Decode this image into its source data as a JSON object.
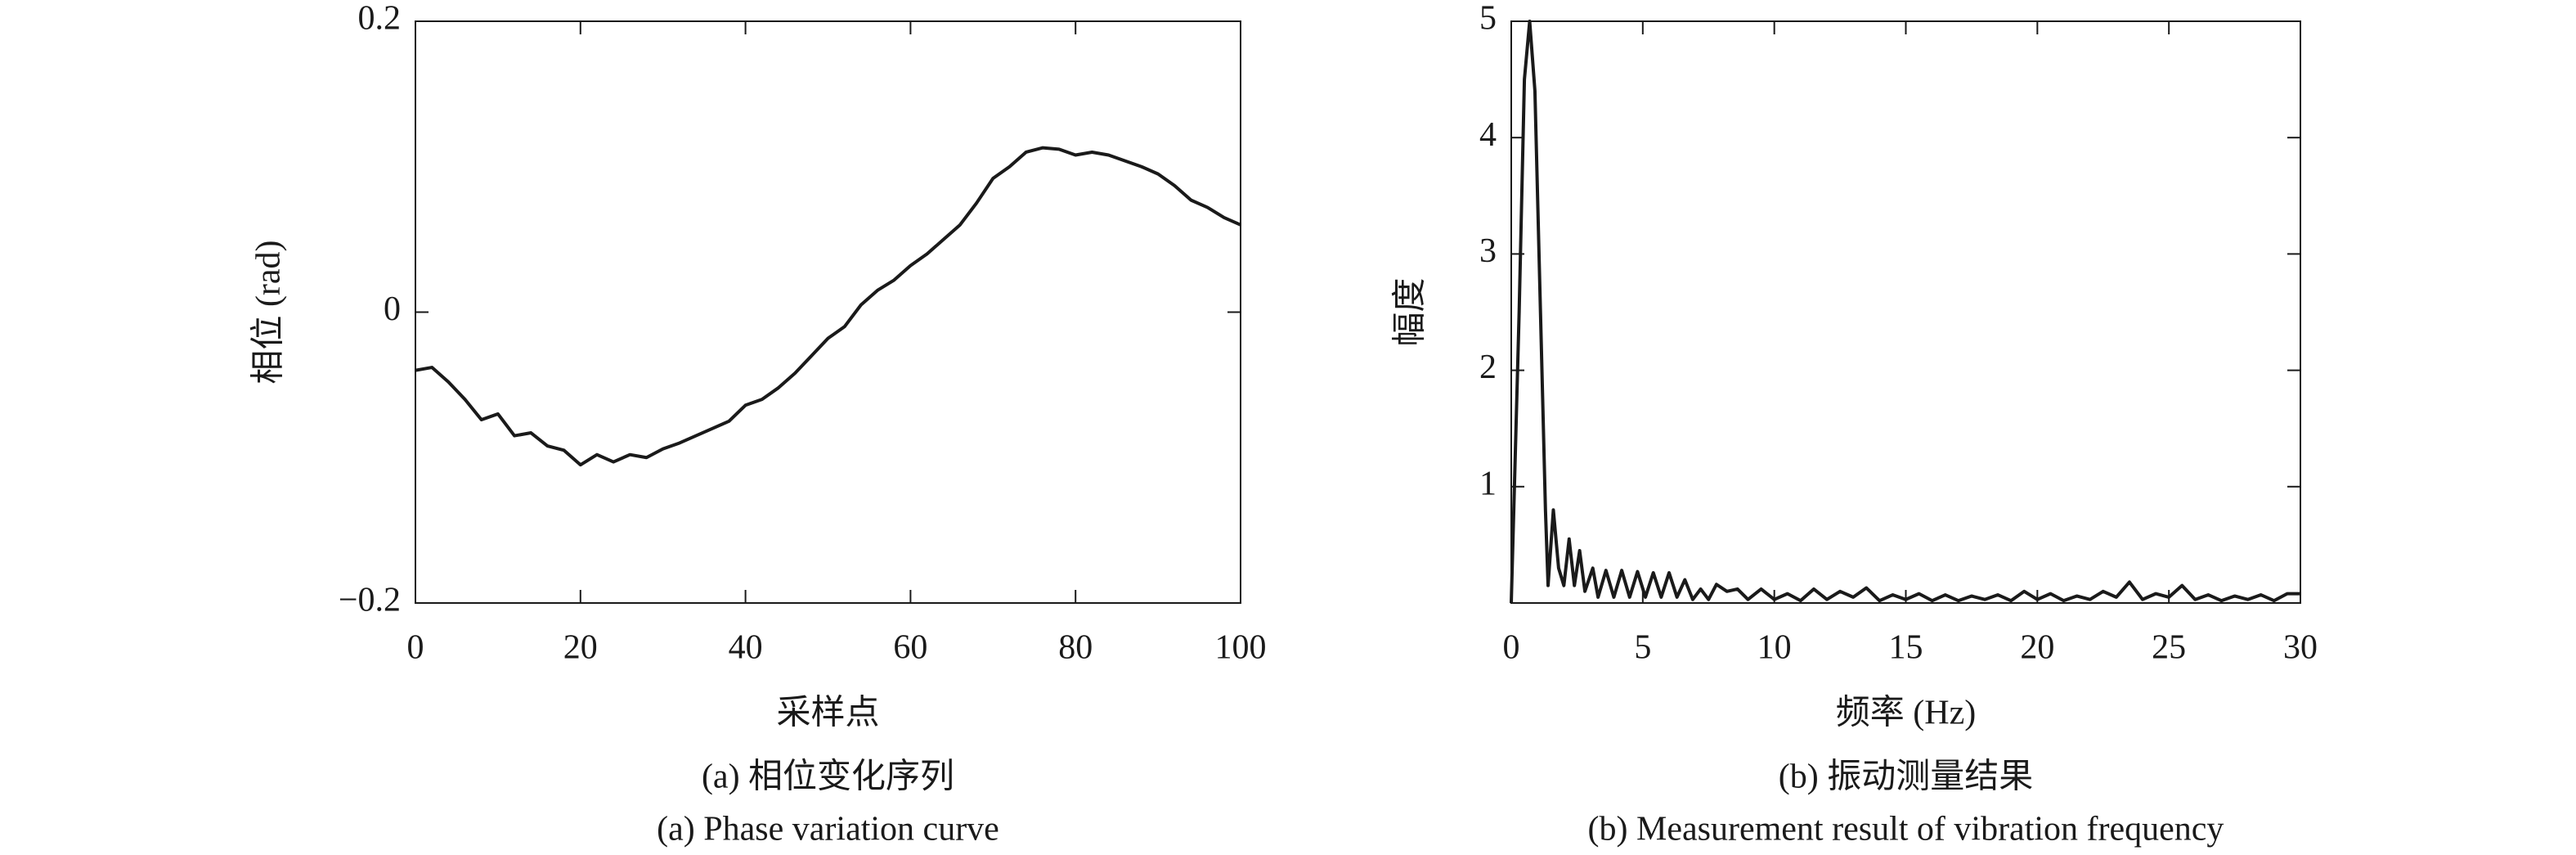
{
  "chart_data": [
    {
      "type": "line",
      "x_label": "采样点",
      "y_label": "相位 (rad)",
      "caption": "(a) 相位变化序列",
      "caption_en": "(a) Phase variation curve",
      "x": [
        0,
        2,
        4,
        6,
        8,
        10,
        12,
        14,
        16,
        18,
        20,
        22,
        24,
        26,
        28,
        30,
        32,
        34,
        36,
        38,
        40,
        42,
        44,
        46,
        48,
        50,
        52,
        54,
        56,
        58,
        60,
        62,
        64,
        66,
        68,
        70,
        72,
        74,
        76,
        78,
        80,
        82,
        84,
        86,
        88,
        90,
        92,
        94,
        96,
        98,
        100
      ],
      "values": [
        -0.04,
        -0.038,
        -0.048,
        -0.06,
        -0.074,
        -0.07,
        -0.085,
        -0.083,
        -0.092,
        -0.095,
        -0.105,
        -0.098,
        -0.103,
        -0.098,
        -0.1,
        -0.094,
        -0.09,
        -0.085,
        -0.08,
        -0.075,
        -0.064,
        -0.06,
        -0.052,
        -0.042,
        -0.03,
        -0.018,
        -0.01,
        0.005,
        0.015,
        0.022,
        0.032,
        0.04,
        0.05,
        0.06,
        0.075,
        0.092,
        0.1,
        0.11,
        0.113,
        0.112,
        0.108,
        0.11,
        0.108,
        0.104,
        0.1,
        0.095,
        0.087,
        0.077,
        0.072,
        0.065,
        0.06
      ],
      "color": "#1a1a1a",
      "xlim": [
        0,
        100
      ],
      "ylim": [
        -0.2,
        0.2
      ],
      "xticks": [
        0,
        20,
        40,
        60,
        80,
        100
      ],
      "yticks": [
        {
          "value": -0.2,
          "label": "−0.2"
        },
        0,
        0.2
      ]
    },
    {
      "type": "line",
      "x_label": "频率 (Hz)",
      "y_label": "幅度",
      "caption": "(b) 振动测量结果",
      "caption_en": "(b) Measurement result of vibration frequency",
      "x": [
        0,
        0.3,
        0.5,
        0.7,
        0.9,
        1.1,
        1.3,
        1.4,
        1.6,
        1.8,
        2.0,
        2.2,
        2.4,
        2.6,
        2.8,
        3.1,
        3.3,
        3.6,
        3.9,
        4.2,
        4.5,
        4.8,
        5.1,
        5.4,
        5.7,
        6.0,
        6.3,
        6.6,
        6.9,
        7.2,
        7.5,
        7.8,
        8.2,
        8.6,
        9,
        9.5,
        10,
        10.5,
        11,
        11.5,
        12,
        12.5,
        13,
        13.5,
        14,
        14.5,
        15,
        15.5,
        16,
        16.5,
        17,
        17.5,
        18,
        18.5,
        19,
        19.5,
        20,
        20.5,
        21,
        21.5,
        22,
        22.5,
        23,
        23.5,
        24,
        24.5,
        25,
        25.5,
        26,
        26.5,
        27,
        27.5,
        28,
        28.5,
        29,
        29.5,
        30
      ],
      "values": [
        0,
        2.5,
        4.5,
        5.0,
        4.4,
        2.6,
        0.8,
        0.15,
        0.8,
        0.3,
        0.15,
        0.55,
        0.15,
        0.45,
        0.1,
        0.3,
        0.05,
        0.28,
        0.05,
        0.28,
        0.05,
        0.27,
        0.05,
        0.26,
        0.05,
        0.26,
        0.05,
        0.2,
        0.03,
        0.12,
        0.03,
        0.16,
        0.1,
        0.12,
        0.03,
        0.12,
        0.03,
        0.08,
        0.02,
        0.12,
        0.03,
        0.1,
        0.05,
        0.13,
        0.02,
        0.07,
        0.03,
        0.08,
        0.02,
        0.07,
        0.02,
        0.06,
        0.03,
        0.07,
        0.02,
        0.1,
        0.03,
        0.08,
        0.02,
        0.06,
        0.03,
        0.1,
        0.05,
        0.18,
        0.03,
        0.08,
        0.05,
        0.15,
        0.03,
        0.07,
        0.02,
        0.06,
        0.03,
        0.07,
        0.02,
        0.08,
        0.08
      ],
      "color": "#1a1a1a",
      "xlim": [
        0,
        30
      ],
      "ylim": [
        0,
        5
      ],
      "xticks": [
        0,
        5,
        10,
        15,
        20,
        25,
        30
      ],
      "yticks": [
        1,
        2,
        3,
        4,
        5
      ]
    }
  ]
}
